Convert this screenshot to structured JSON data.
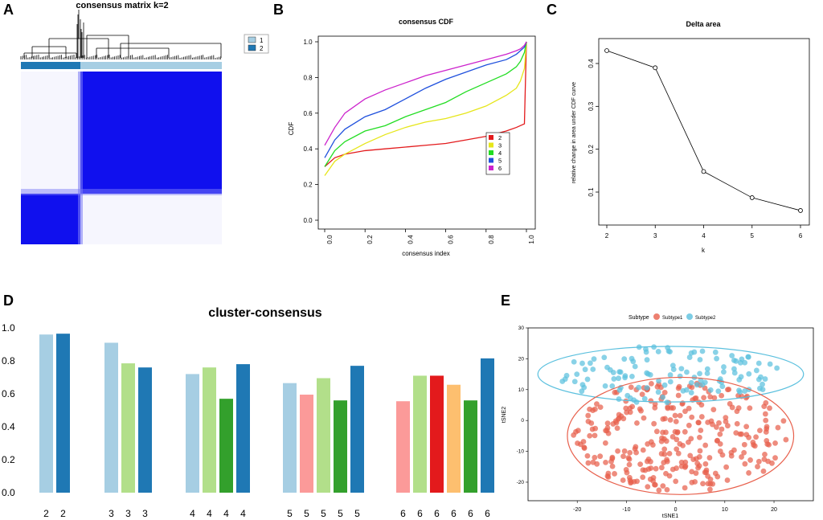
{
  "panelA": {
    "letter": "A",
    "title": "consensus matrix k=2",
    "legend": [
      "1",
      "2"
    ],
    "colors": {
      "c1": "#a6cee3",
      "c2": "#1f78b4",
      "blue": "#1010ee",
      "white": "#ffffff"
    }
  },
  "panelB": {
    "letter": "B",
    "chart_data": {
      "type": "line",
      "title": "consensus CDF",
      "xlabel": "consensus index",
      "ylabel": "CDF",
      "xlim": [
        0,
        1
      ],
      "ylim": [
        0,
        1
      ],
      "xticks": [
        "0.0",
        "0.2",
        "0.4",
        "0.6",
        "0.8",
        "1.0"
      ],
      "yticks": [
        "0.0",
        "0.2",
        "0.4",
        "0.6",
        "0.8",
        "1.0"
      ],
      "x": [
        0.0,
        0.05,
        0.1,
        0.2,
        0.3,
        0.4,
        0.5,
        0.6,
        0.7,
        0.8,
        0.9,
        0.95,
        0.97,
        0.99,
        1.0
      ],
      "series": [
        {
          "name": "2",
          "color": "#e31a1c",
          "values": [
            0.3,
            0.35,
            0.37,
            0.39,
            0.4,
            0.41,
            0.42,
            0.43,
            0.45,
            0.47,
            0.5,
            0.52,
            0.53,
            0.54,
            1.0
          ]
        },
        {
          "name": "3",
          "color": "#e6e61a",
          "values": [
            0.25,
            0.33,
            0.37,
            0.43,
            0.48,
            0.52,
            0.55,
            0.57,
            0.6,
            0.64,
            0.7,
            0.74,
            0.78,
            0.85,
            1.0
          ]
        },
        {
          "name": "4",
          "color": "#22dd22",
          "values": [
            0.3,
            0.39,
            0.44,
            0.5,
            0.53,
            0.58,
            0.62,
            0.66,
            0.72,
            0.77,
            0.82,
            0.86,
            0.89,
            0.94,
            1.0
          ]
        },
        {
          "name": "5",
          "color": "#1f50dd",
          "values": [
            0.35,
            0.45,
            0.51,
            0.58,
            0.62,
            0.68,
            0.74,
            0.79,
            0.83,
            0.87,
            0.9,
            0.93,
            0.95,
            0.97,
            1.0
          ]
        },
        {
          "name": "6",
          "color": "#cc22cc",
          "values": [
            0.42,
            0.52,
            0.6,
            0.68,
            0.73,
            0.77,
            0.81,
            0.84,
            0.87,
            0.9,
            0.93,
            0.95,
            0.96,
            0.98,
            1.0
          ]
        }
      ],
      "legend": [
        "2",
        "3",
        "4",
        "5",
        "6"
      ]
    }
  },
  "panelC": {
    "letter": "C",
    "chart_data": {
      "type": "line",
      "title": "Delta area",
      "xlabel": "k",
      "ylabel": "relative change in area under CDF curve",
      "x": [
        2,
        3,
        4,
        5,
        6
      ],
      "values": [
        0.43,
        0.39,
        0.148,
        0.087,
        0.057
      ],
      "xticks": [
        "2",
        "3",
        "4",
        "5",
        "6"
      ],
      "yticks": [
        "0.1",
        "0.2",
        "0.3",
        "0.4"
      ],
      "ylim": [
        0.04,
        0.445
      ]
    }
  },
  "panelD": {
    "letter": "D",
    "chart_data": {
      "type": "bar",
      "title": "cluster-consensus",
      "ylim": [
        0,
        1
      ],
      "yticks": [
        "0.0",
        "0.2",
        "0.4",
        "0.6",
        "0.8",
        "1.0"
      ],
      "groups": [
        {
          "k": "2",
          "values": [
            0.96,
            0.965
          ],
          "colors": [
            "#a6cee3",
            "#1f78b4"
          ]
        },
        {
          "k": "3",
          "values": [
            0.91,
            0.785,
            0.76
          ],
          "colors": [
            "#a6cee3",
            "#b2df8a",
            "#1f78b4"
          ]
        },
        {
          "k": "4",
          "values": [
            0.72,
            0.76,
            0.57,
            0.78
          ],
          "colors": [
            "#a6cee3",
            "#b2df8a",
            "#33a02c",
            "#1f78b4"
          ]
        },
        {
          "k": "5",
          "values": [
            0.665,
            0.595,
            0.695,
            0.56,
            0.77
          ],
          "colors": [
            "#a6cee3",
            "#fb9a99",
            "#b2df8a",
            "#33a02c",
            "#1f78b4"
          ]
        },
        {
          "k": "6",
          "values": [
            0.555,
            0.71,
            0.71,
            0.655,
            0.56,
            0.815
          ],
          "colors": [
            "#fb9a99",
            "#b2df8a",
            "#e31a1c",
            "#fdbf6f",
            "#33a02c",
            "#1f78b4"
          ]
        }
      ]
    }
  },
  "panelE": {
    "letter": "E",
    "chart_data": {
      "type": "scatter",
      "xlabel": "tSNE1",
      "ylabel": "tSNE2",
      "xlim": [
        -30,
        28
      ],
      "ylim": [
        -26,
        30
      ],
      "xticks": [
        "-20",
        "-10",
        "0",
        "10",
        "20"
      ],
      "yticks": [
        "-20",
        "-10",
        "0",
        "10",
        "20",
        "30"
      ],
      "legend_title": "Subtype",
      "legend": [
        "Subtype1",
        "Subtype2"
      ],
      "colors": {
        "Subtype1": "#e8604c",
        "Subtype2": "#5bc0de"
      },
      "ellipses": [
        {
          "group": "Subtype2",
          "center": [
            -1,
            15
          ],
          "radius_x": 27,
          "radius_y": 9
        },
        {
          "group": "Subtype1",
          "center": [
            1,
            -5
          ],
          "radius_x": 23,
          "radius_y": 19
        }
      ]
    }
  }
}
